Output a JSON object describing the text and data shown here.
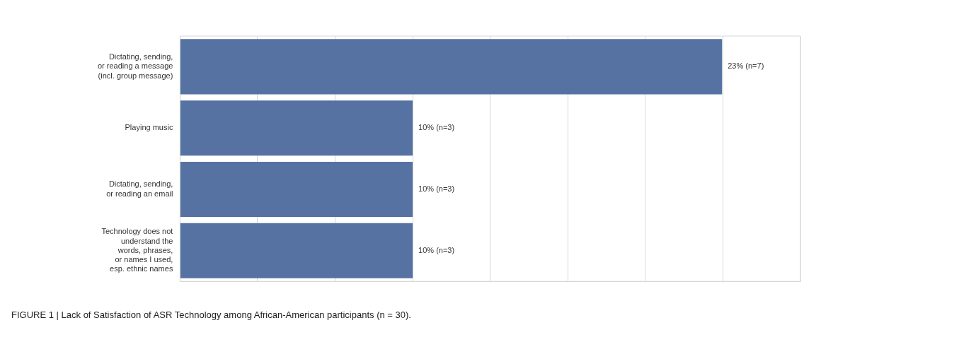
{
  "chart_data": {
    "type": "bar",
    "orientation": "horizontal",
    "annotations": [
      "FIGURE 1 | Lack of Satisfaction of ASR Technology among African-American participants (n = 30)."
    ],
    "categories": [
      "Dictating, sending,\nor reading a message\n(incl. group message)",
      "Playing music",
      "Dictating, sending,\nor reading an email",
      "Technology does not\nunderstand the\nwords, phrases,\nor names I used,\nesp. ethnic names"
    ],
    "values": [
      23.3,
      10,
      10,
      10
    ],
    "color": "#5572a2",
    "value_labels": [
      "23% (n=7)",
      "10% (n=3)",
      "10% (n=3)",
      "10% (n=3)"
    ],
    "xlim": [
      0,
      26.67
    ],
    "xticks": [
      {
        "value": 0,
        "label": null
      },
      {
        "value": 3.33,
        "label": null
      },
      {
        "value": 6.67,
        "label": null
      },
      {
        "value": 10,
        "label": null
      },
      {
        "value": 13.33,
        "label": null
      },
      {
        "value": 16.67,
        "label": null
      },
      {
        "value": 20,
        "label": null
      },
      {
        "value": 23.33,
        "label": null
      },
      {
        "value": 26.67,
        "label": null
      }
    ],
    "tick_labels": "y",
    "grid": "x",
    "legend": false
  }
}
